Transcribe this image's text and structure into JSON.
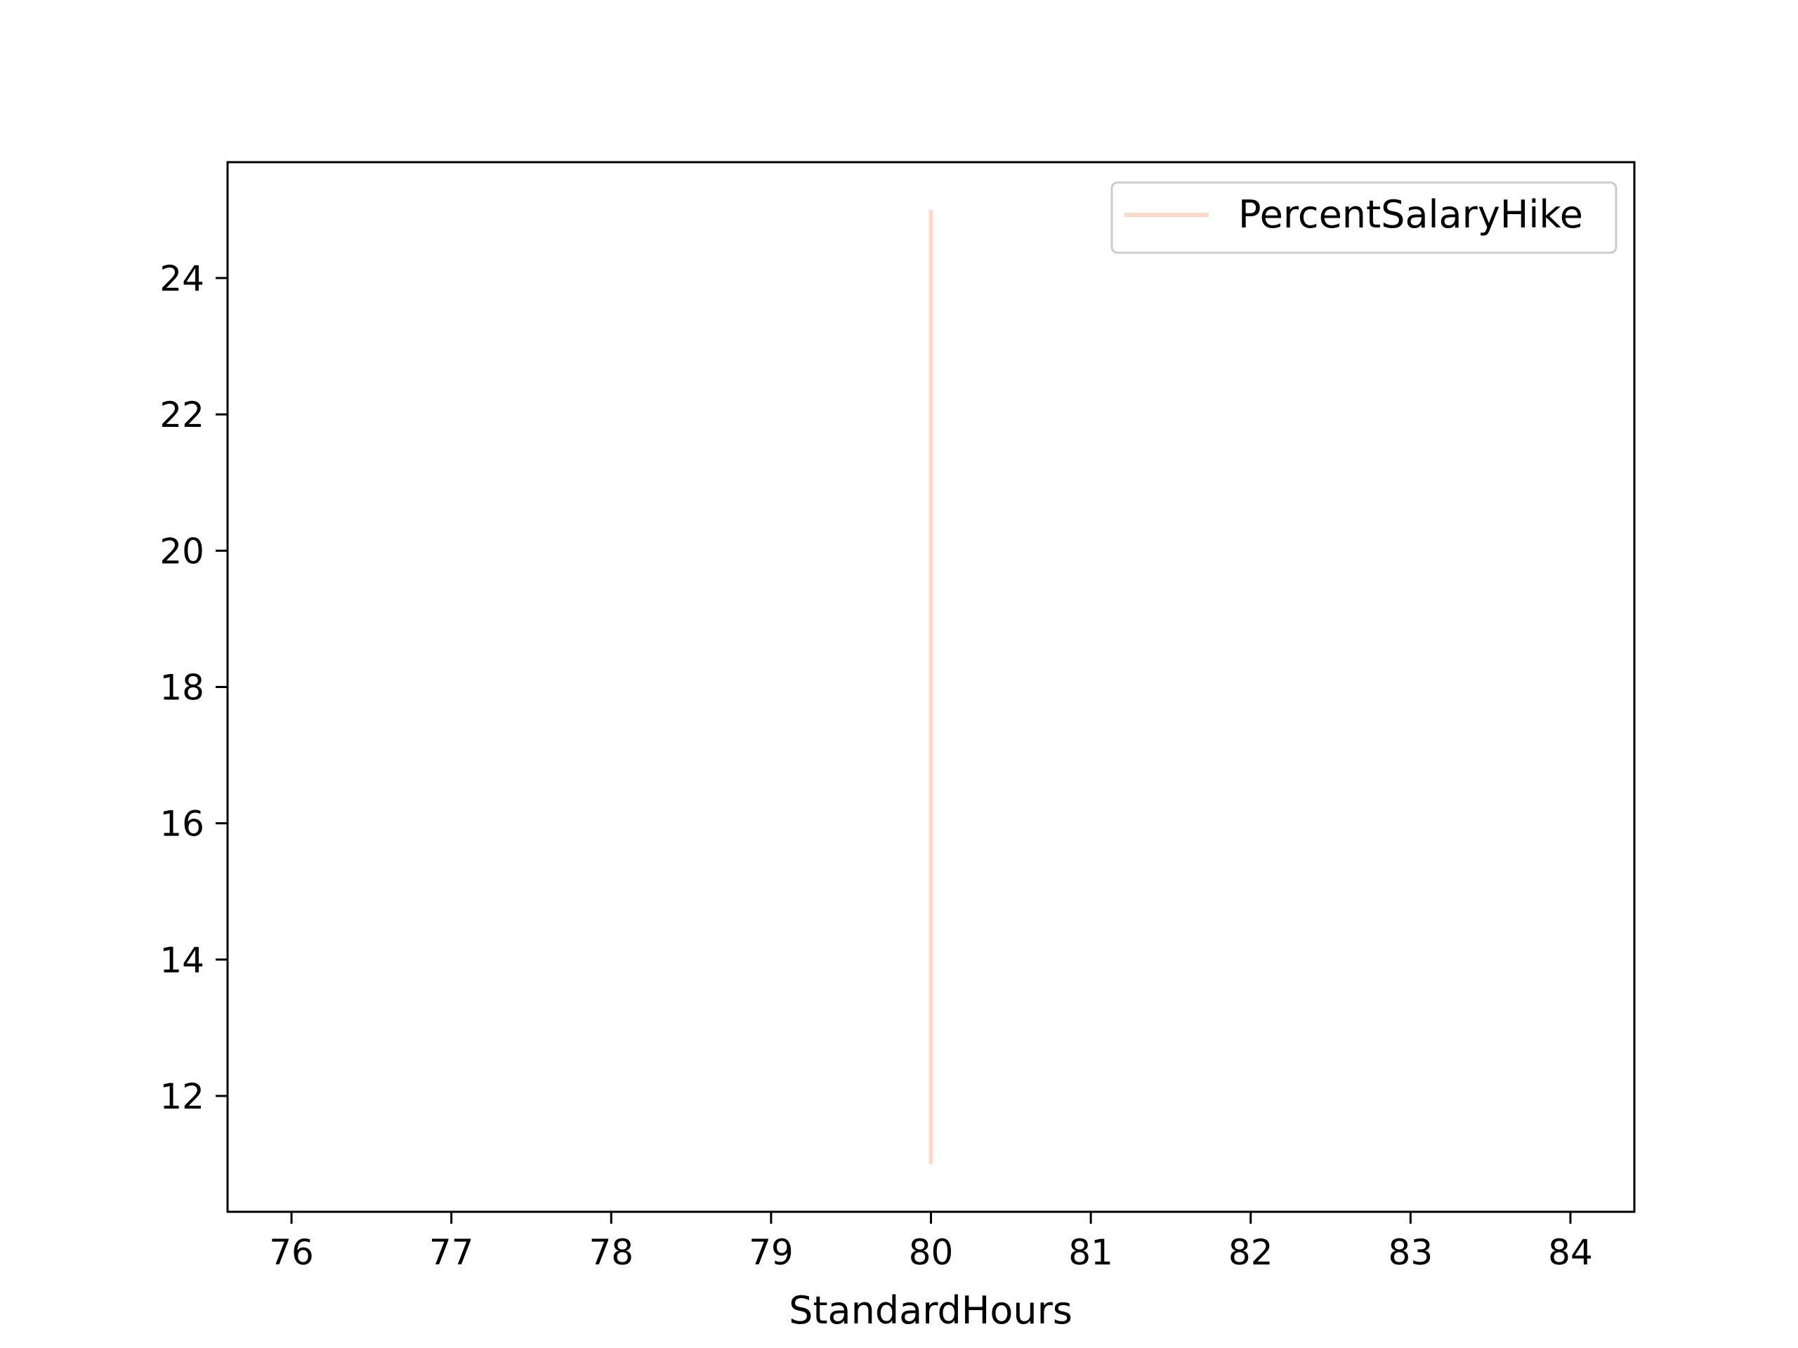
{
  "chart_data": {
    "type": "line",
    "xlabel": "StandardHours",
    "ylabel": "",
    "xlim": [
      75.6,
      84.4
    ],
    "ylim": [
      10.3,
      25.7
    ],
    "xticks": [
      "76",
      "77",
      "78",
      "79",
      "80",
      "81",
      "82",
      "83",
      "84"
    ],
    "yticks": [
      "12",
      "14",
      "16",
      "18",
      "20",
      "22",
      "24"
    ],
    "grid": false,
    "legend_position": "top-right",
    "series": [
      {
        "name": "PercentSalaryHike",
        "color": "#fcd9cb",
        "x": [
          80,
          80
        ],
        "y": [
          11,
          25
        ]
      }
    ]
  }
}
